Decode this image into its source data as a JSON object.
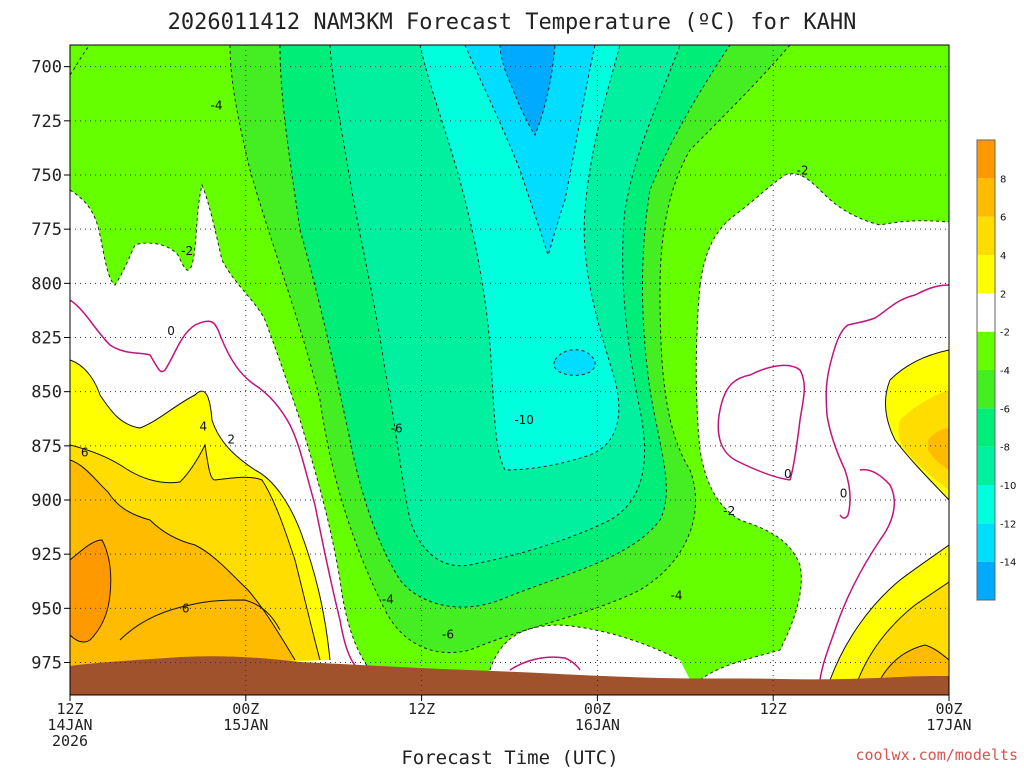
{
  "chart_data": {
    "type": "contour",
    "title": "2026011412 NAM3KM Forecast Temperature (ºC) for KAHN",
    "xlabel": "Forecast Time (UTC)",
    "ylabel": "",
    "y_axis": {
      "unit": "hPa",
      "inverted": true,
      "range": [
        690,
        990
      ],
      "ticks": [
        "700",
        "725",
        "750",
        "775",
        "800",
        "825",
        "850",
        "875",
        "900",
        "925",
        "950",
        "975"
      ]
    },
    "x_axis": {
      "range_hours": [
        0,
        60
      ],
      "ticks": [
        {
          "hour": 0,
          "lines": [
            "12Z",
            "14JAN",
            "2026"
          ]
        },
        {
          "hour": 12,
          "lines": [
            "00Z",
            "15JAN"
          ]
        },
        {
          "hour": 24,
          "lines": [
            "12Z"
          ]
        },
        {
          "hour": 36,
          "lines": [
            "00Z",
            "16JAN"
          ]
        },
        {
          "hour": 48,
          "lines": [
            "12Z"
          ]
        },
        {
          "hour": 60,
          "lines": [
            "00Z",
            "17JAN"
          ]
        }
      ]
    },
    "grid": true,
    "legend": {
      "type": "colorbar",
      "placement": "right",
      "levels": [
        {
          "label": "",
          "color": "#00aaff"
        },
        {
          "label": "-14",
          "color": "#00ddff"
        },
        {
          "label": "-12",
          "color": "#00ffdd"
        },
        {
          "label": "-10",
          "color": "#00f0a0"
        },
        {
          "label": "-8",
          "color": "#00ee77"
        },
        {
          "label": "-6",
          "color": "#44ee22"
        },
        {
          "label": "-4",
          "color": "#66ff00"
        },
        {
          "label": "-2",
          "color": "#ffffff"
        },
        {
          "label": "2",
          "color": "#ffff00"
        },
        {
          "label": "4",
          "color": "#ffdd00"
        },
        {
          "label": "6",
          "color": "#ffbb00"
        },
        {
          "label": "8",
          "color": "#ff9900"
        }
      ]
    },
    "contour_labels": [
      {
        "text": "-4",
        "hour": 10.0,
        "p": 718
      },
      {
        "text": "-2",
        "hour": 8.0,
        "p": 785
      },
      {
        "text": "0",
        "hour": 6.9,
        "p": 822
      },
      {
        "text": "4",
        "hour": 9.1,
        "p": 866
      },
      {
        "text": "2",
        "hour": 11.0,
        "p": 872
      },
      {
        "text": "6",
        "hour": 1.0,
        "p": 878
      },
      {
        "text": "6",
        "hour": 7.9,
        "p": 950
      },
      {
        "text": "-6",
        "hour": 22.3,
        "p": 867
      },
      {
        "text": "-10",
        "hour": 31.0,
        "p": 863
      },
      {
        "text": "-2",
        "hour": 45.0,
        "p": 905
      },
      {
        "text": "-4",
        "hour": 21.7,
        "p": 946
      },
      {
        "text": "-6",
        "hour": 25.8,
        "p": 962
      },
      {
        "text": "-4",
        "hour": 41.4,
        "p": 944
      },
      {
        "text": "-2",
        "hour": 50.0,
        "p": 748
      },
      {
        "text": "0",
        "hour": 49.0,
        "p": 888
      },
      {
        "text": "0",
        "hour": 52.8,
        "p": 897
      }
    ],
    "terrain_color": "#a0522d"
  },
  "credit": "coolwx.com/modelts"
}
